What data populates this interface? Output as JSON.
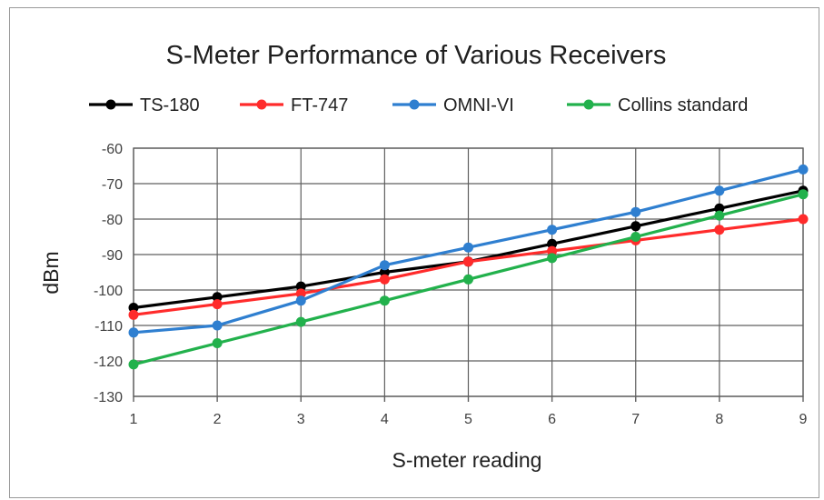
{
  "chart_data": {
    "type": "line",
    "title": "S-Meter Performance of Various Receivers",
    "xlabel": "S-meter reading",
    "ylabel": "dBm",
    "x": [
      1,
      2,
      3,
      4,
      5,
      6,
      7,
      8,
      9
    ],
    "xlim": [
      1,
      9
    ],
    "ylim": [
      -130,
      -60
    ],
    "yticks": [
      -60,
      -70,
      -80,
      -90,
      -100,
      -110,
      -120,
      -130
    ],
    "grid": true,
    "legend_position": "top",
    "series": [
      {
        "name": "TS-180",
        "color": "#000000",
        "values": [
          -105,
          -102,
          -99,
          -95,
          -92,
          -87,
          -82,
          -77,
          -72
        ]
      },
      {
        "name": "FT-747",
        "color": "#ff2b2b",
        "values": [
          -107,
          -104,
          -101,
          -97,
          -92,
          -89,
          -86,
          -83,
          -80
        ]
      },
      {
        "name": "OMNI-VI",
        "color": "#2f7fd0",
        "values": [
          -112,
          -110,
          -103,
          -93,
          -88,
          -83,
          -78,
          -72,
          -66
        ]
      },
      {
        "name": "Collins standard",
        "color": "#22b14c",
        "values": [
          -121,
          -115,
          -109,
          -103,
          -97,
          -91,
          -85,
          -79,
          -73
        ]
      }
    ]
  }
}
